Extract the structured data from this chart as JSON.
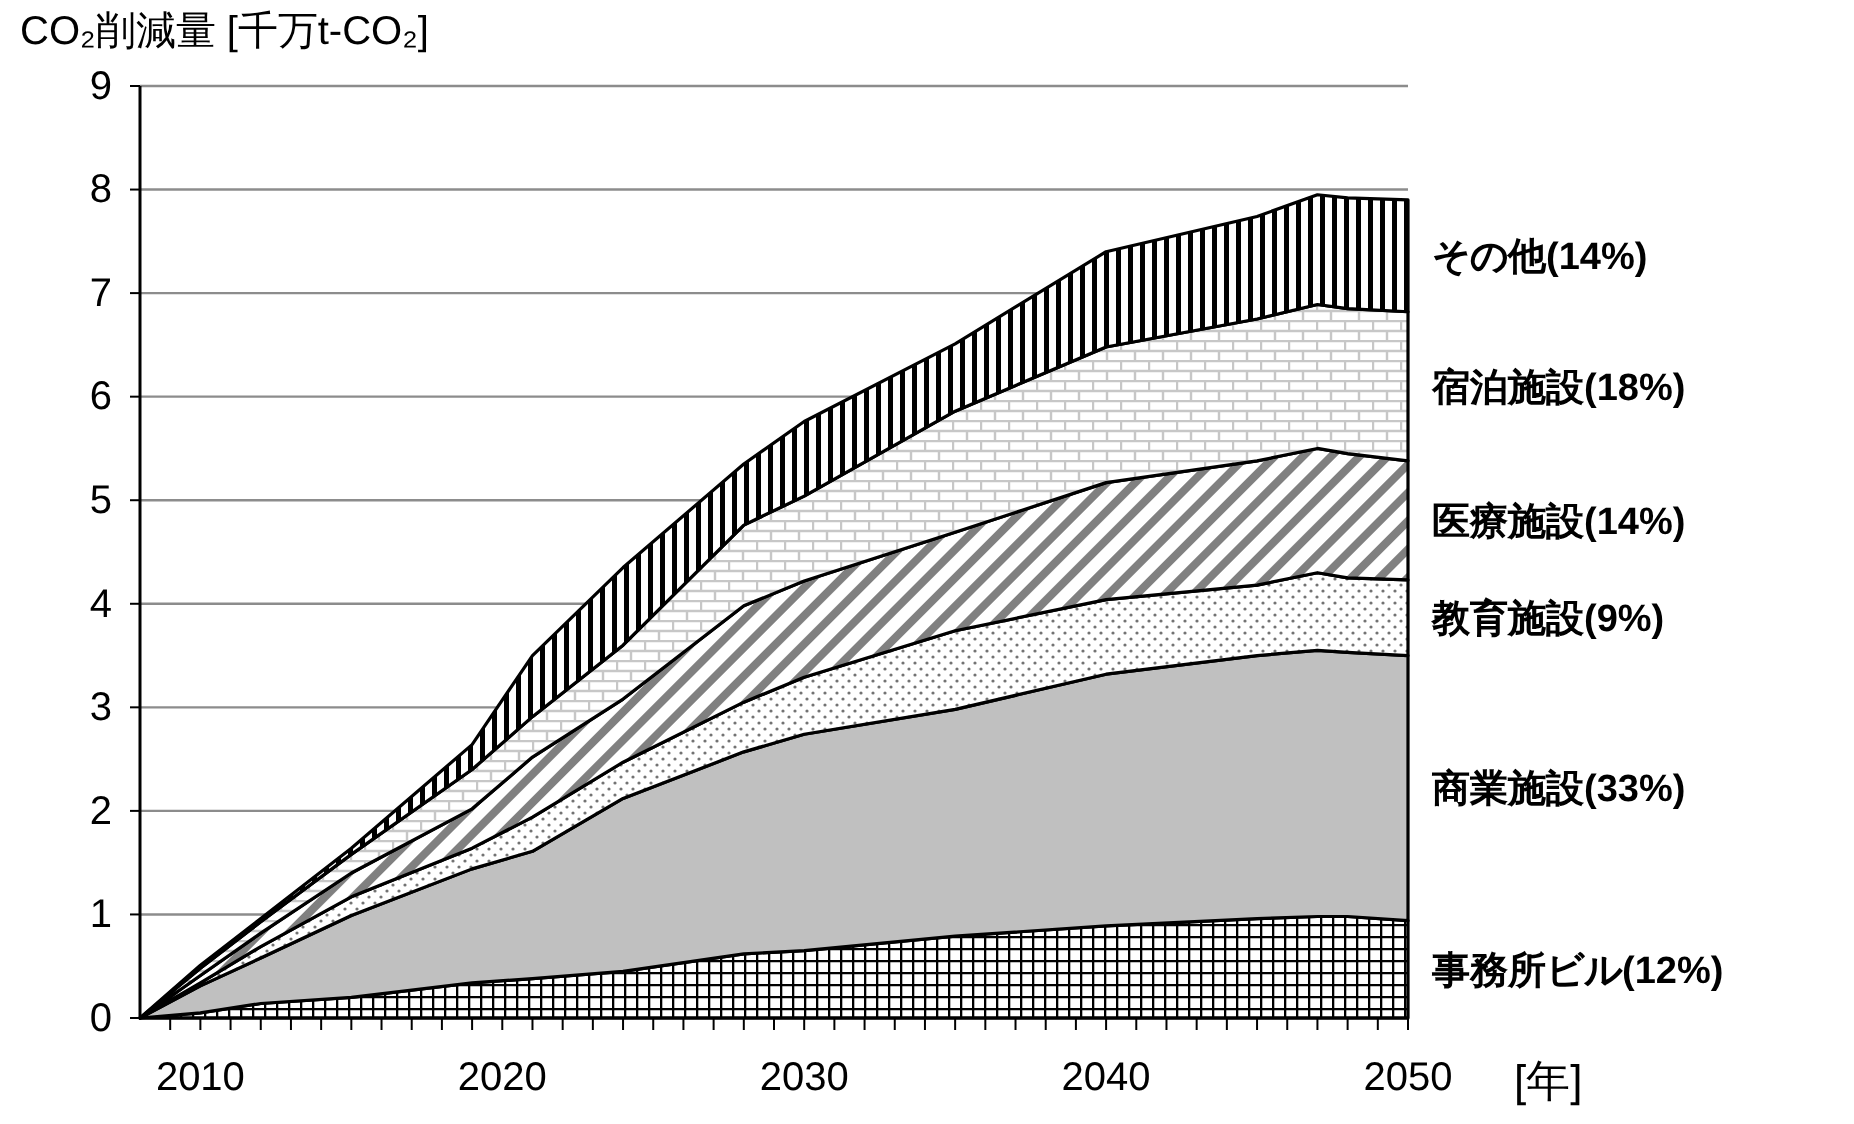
{
  "chart_data": {
    "type": "area",
    "stacked": true,
    "ylabel": "CO₂削減量 [千万t-CO₂]",
    "xlabel": "[年]",
    "x": [
      2008,
      2010,
      2012,
      2015,
      2019,
      2021,
      2024,
      2028,
      2030,
      2035,
      2040,
      2045,
      2047,
      2048,
      2050
    ],
    "xlim": [
      2008,
      2050
    ],
    "xticks": [
      {
        "value": 2009,
        "label": null
      },
      2010,
      {
        "value": 2011,
        "label": null
      },
      {
        "value": 2012,
        "label": null
      },
      {
        "value": 2013,
        "label": null
      },
      {
        "value": 2014,
        "label": null
      },
      {
        "value": 2015,
        "label": null
      },
      {
        "value": 2016,
        "label": null
      },
      {
        "value": 2017,
        "label": null
      },
      {
        "value": 2018,
        "label": null
      },
      {
        "value": 2019,
        "label": null
      },
      2020,
      {
        "value": 2021,
        "label": null
      },
      {
        "value": 2022,
        "label": null
      },
      {
        "value": 2023,
        "label": null
      },
      {
        "value": 2024,
        "label": null
      },
      {
        "value": 2025,
        "label": null
      },
      {
        "value": 2026,
        "label": null
      },
      {
        "value": 2027,
        "label": null
      },
      {
        "value": 2028,
        "label": null
      },
      {
        "value": 2029,
        "label": null
      },
      2030,
      {
        "value": 2031,
        "label": null
      },
      {
        "value": 2032,
        "label": null
      },
      {
        "value": 2033,
        "label": null
      },
      {
        "value": 2034,
        "label": null
      },
      {
        "value": 2035,
        "label": null
      },
      {
        "value": 2036,
        "label": null
      },
      {
        "value": 2037,
        "label": null
      },
      {
        "value": 2038,
        "label": null
      },
      {
        "value": 2039,
        "label": null
      },
      2040,
      {
        "value": 2041,
        "label": null
      },
      {
        "value": 2042,
        "label": null
      },
      {
        "value": 2043,
        "label": null
      },
      {
        "value": 2044,
        "label": null
      },
      {
        "value": 2045,
        "label": null
      },
      {
        "value": 2046,
        "label": null
      },
      {
        "value": 2047,
        "label": null
      },
      {
        "value": 2048,
        "label": null
      },
      {
        "value": 2049,
        "label": null
      },
      2050
    ],
    "ylim": [
      0,
      9
    ],
    "yticks": [
      0,
      1,
      2,
      3,
      4,
      5,
      6,
      7,
      8,
      9
    ],
    "grid": "y",
    "series": [
      {
        "name": "事務所ビル(12%)",
        "color": "#000000",
        "values": [
          0,
          0.05,
          0.14,
          0.2,
          0.34,
          0.38,
          0.45,
          0.62,
          0.65,
          0.79,
          0.89,
          0.96,
          0.98,
          0.98,
          0.94
        ]
      },
      {
        "name": "商業施設(33%)",
        "color": "#c0c0c0",
        "values": [
          0,
          0.26,
          0.44,
          0.79,
          1.1,
          1.23,
          1.67,
          1.95,
          2.09,
          2.19,
          2.43,
          2.54,
          2.57,
          2.55,
          2.56
        ]
      },
      {
        "name": "教育施設(9%)",
        "color": "#000000",
        "values": [
          0,
          0.03,
          0.11,
          0.18,
          0.2,
          0.33,
          0.35,
          0.48,
          0.55,
          0.76,
          0.72,
          0.68,
          0.75,
          0.72,
          0.73
        ]
      },
      {
        "name": "医療施設(14%)",
        "color": "#000000",
        "values": [
          0,
          0.07,
          0.13,
          0.23,
          0.38,
          0.58,
          0.61,
          0.93,
          0.93,
          0.95,
          1.13,
          1.2,
          1.2,
          1.2,
          1.15
        ]
      },
      {
        "name": "宿泊施設(18%)",
        "color": "#000000",
        "values": [
          0,
          0.07,
          0.11,
          0.18,
          0.38,
          0.39,
          0.52,
          0.78,
          0.82,
          1.17,
          1.31,
          1.37,
          1.39,
          1.4,
          1.44
        ]
      },
      {
        "name": "その他(14%)",
        "color": "#000000",
        "values": [
          0,
          0.03,
          0.03,
          0.06,
          0.24,
          0.59,
          0.75,
          0.59,
          0.72,
          0.65,
          0.92,
          0.99,
          1.06,
          1.07,
          1.08
        ]
      }
    ]
  }
}
